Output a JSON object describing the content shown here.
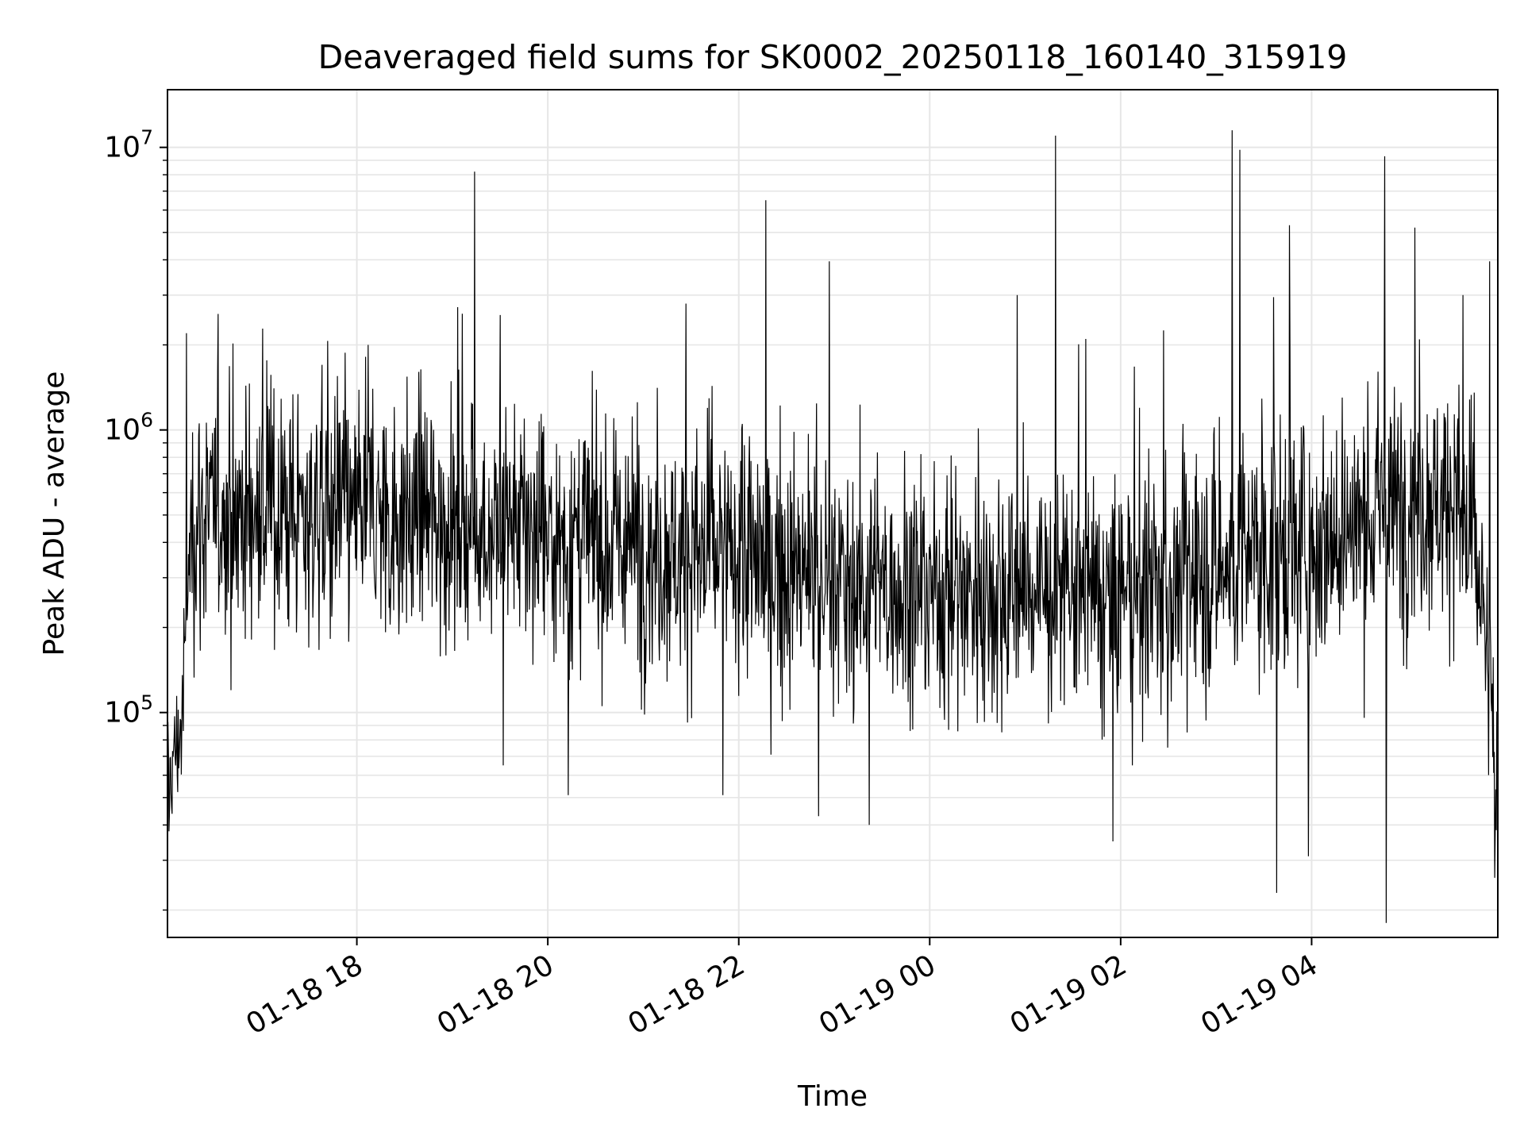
{
  "chart_data": {
    "type": "line",
    "title": "Deaveraged field sums for SK0002_20250118_160140_315919",
    "xlabel": "Time",
    "ylabel": "Peak ADU - average",
    "y_scale": "log",
    "ylim": [
      16000,
      16000000
    ],
    "xlim": [
      "2025-01-18 16:01",
      "2025-01-19 05:57"
    ],
    "grid": true,
    "line_color": "#000000",
    "grid_color": "#e6e6e6",
    "x_ticks": [
      {
        "value": "2025-01-18 18:00",
        "label": "01-18 18"
      },
      {
        "value": "2025-01-18 20:00",
        "label": "01-18 20"
      },
      {
        "value": "2025-01-18 22:00",
        "label": "01-18 22"
      },
      {
        "value": "2025-01-19 00:00",
        "label": "01-19 00"
      },
      {
        "value": "2025-01-19 02:00",
        "label": "01-19 02"
      },
      {
        "value": "2025-01-19 04:00",
        "label": "01-19 04"
      }
    ],
    "y_ticks": [
      {
        "value": 100000,
        "base": "10",
        "exp": "5"
      },
      {
        "value": 1000000,
        "base": "10",
        "exp": "6"
      },
      {
        "value": 10000000,
        "base": "10",
        "exp": "7"
      }
    ],
    "series": [
      {
        "baseline": [
          {
            "x": "2025-01-18 16:01",
            "y": 55000
          },
          {
            "x": "2025-01-18 16:10",
            "y": 90000
          },
          {
            "x": "2025-01-18 16:16",
            "y": 480000
          },
          {
            "x": "2025-01-18 16:30",
            "y": 500000
          },
          {
            "x": "2025-01-18 17:00",
            "y": 500000
          },
          {
            "x": "2025-01-18 18:00",
            "y": 500000
          },
          {
            "x": "2025-01-18 19:00",
            "y": 470000
          },
          {
            "x": "2025-01-18 20:00",
            "y": 420000
          },
          {
            "x": "2025-01-18 21:00",
            "y": 380000
          },
          {
            "x": "2025-01-18 22:00",
            "y": 350000
          },
          {
            "x": "2025-01-18 23:00",
            "y": 290000
          },
          {
            "x": "2025-01-19 00:00",
            "y": 270000
          },
          {
            "x": "2025-01-19 01:00",
            "y": 270000
          },
          {
            "x": "2025-01-19 02:00",
            "y": 240000
          },
          {
            "x": "2025-01-19 03:00",
            "y": 320000
          },
          {
            "x": "2025-01-19 04:00",
            "y": 400000
          },
          {
            "x": "2025-01-19 05:00",
            "y": 550000
          },
          {
            "x": "2025-01-19 05:30",
            "y": 580000
          },
          {
            "x": "2025-01-19 05:45",
            "y": 300000
          },
          {
            "x": "2025-01-19 05:57",
            "y": 50000
          }
        ],
        "spikes": [
          {
            "x": "2025-01-18 16:13",
            "y": 2200000
          },
          {
            "x": "2025-01-18 17:38",
            "y": 1700000
          },
          {
            "x": "2025-01-18 18:07",
            "y": 2000000
          },
          {
            "x": "2025-01-18 19:14",
            "y": 8200000
          },
          {
            "x": "2025-01-18 19:30",
            "y": 2550000
          },
          {
            "x": "2025-01-18 21:27",
            "y": 2800000
          },
          {
            "x": "2025-01-18 22:17",
            "y": 6500000
          },
          {
            "x": "2025-01-18 22:57",
            "y": 3950000
          },
          {
            "x": "2025-01-19 00:55",
            "y": 3000000
          },
          {
            "x": "2025-01-19 01:19",
            "y": 11000000
          },
          {
            "x": "2025-01-19 01:38",
            "y": 2100000
          },
          {
            "x": "2025-01-19 02:27",
            "y": 2250000
          },
          {
            "x": "2025-01-19 03:10",
            "y": 11500000
          },
          {
            "x": "2025-01-19 03:15",
            "y": 9800000
          },
          {
            "x": "2025-01-19 03:36",
            "y": 2950000
          },
          {
            "x": "2025-01-19 03:46",
            "y": 5300000
          },
          {
            "x": "2025-01-19 04:46",
            "y": 9300000
          },
          {
            "x": "2025-01-19 05:05",
            "y": 5200000
          },
          {
            "x": "2025-01-19 05:35",
            "y": 3000000
          },
          {
            "x": "2025-01-19 05:52",
            "y": 3950000
          }
        ],
        "dips": [
          {
            "x": "2025-01-18 16:02",
            "y": 38000
          },
          {
            "x": "2025-01-18 19:32",
            "y": 65000
          },
          {
            "x": "2025-01-18 20:13",
            "y": 51000
          },
          {
            "x": "2025-01-18 21:50",
            "y": 51000
          },
          {
            "x": "2025-01-18 22:50",
            "y": 43000
          },
          {
            "x": "2025-01-18 23:22",
            "y": 40000
          },
          {
            "x": "2025-01-19 01:55",
            "y": 35000
          },
          {
            "x": "2025-01-19 03:38",
            "y": 23000
          },
          {
            "x": "2025-01-19 03:58",
            "y": 31000
          },
          {
            "x": "2025-01-19 04:47",
            "y": 18000
          },
          {
            "x": "2025-01-19 05:55",
            "y": 26000
          }
        ]
      }
    ]
  }
}
